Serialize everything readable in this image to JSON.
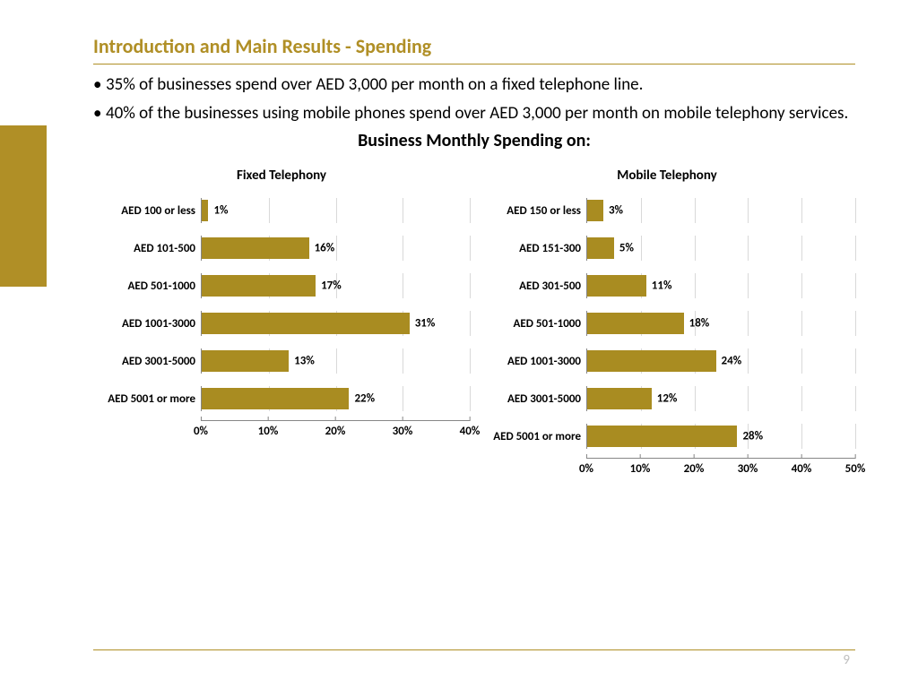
{
  "title": "Introduction and Main Results - Spending",
  "bullets": [
    "35% of businesses spend over AED 3,000 per month on a fixed telephone line.",
    "40% of the businesses using mobile phones spend over AED 3,000 per month on mobile telephony services."
  ],
  "chart_heading": "Business Monthly Spending on:",
  "accent_color": "#b08f26",
  "bar_color": "#a98c21",
  "grid_color": "#d9d9d9",
  "axis_color": "#868686",
  "background_color": "#ffffff",
  "page_number": "9",
  "charts": [
    {
      "title": "Fixed Telephony",
      "xmax": 40,
      "xtick_step": 10,
      "xticks": [
        "0%",
        "10%",
        "20%",
        "30%",
        "40%"
      ],
      "rows": [
        {
          "label": "AED 100 or less",
          "value": 1,
          "display": "1%"
        },
        {
          "label": "AED 101-500",
          "value": 16,
          "display": "16%"
        },
        {
          "label": "AED 501-1000",
          "value": 17,
          "display": "17%"
        },
        {
          "label": "AED 1001-3000",
          "value": 31,
          "display": "31%"
        },
        {
          "label": "AED 3001-5000",
          "value": 13,
          "display": "13%"
        },
        {
          "label": "AED 5001 or more",
          "value": 22,
          "display": "22%"
        }
      ]
    },
    {
      "title": "Mobile Telephony",
      "xmax": 50,
      "xtick_step": 10,
      "xticks": [
        "0%",
        "10%",
        "20%",
        "30%",
        "40%",
        "50%"
      ],
      "rows": [
        {
          "label": "AED 150 or less",
          "value": 3,
          "display": "3%"
        },
        {
          "label": "AED 151-300",
          "value": 5,
          "display": "5%"
        },
        {
          "label": "AED 301-500",
          "value": 11,
          "display": "11%"
        },
        {
          "label": "AED 501-1000",
          "value": 18,
          "display": "18%"
        },
        {
          "label": "AED 1001-3000",
          "value": 24,
          "display": "24%"
        },
        {
          "label": "AED 3001-5000",
          "value": 12,
          "display": "12%"
        },
        {
          "label": "AED 5001 or more",
          "value": 28,
          "display": "28%"
        }
      ]
    }
  ]
}
